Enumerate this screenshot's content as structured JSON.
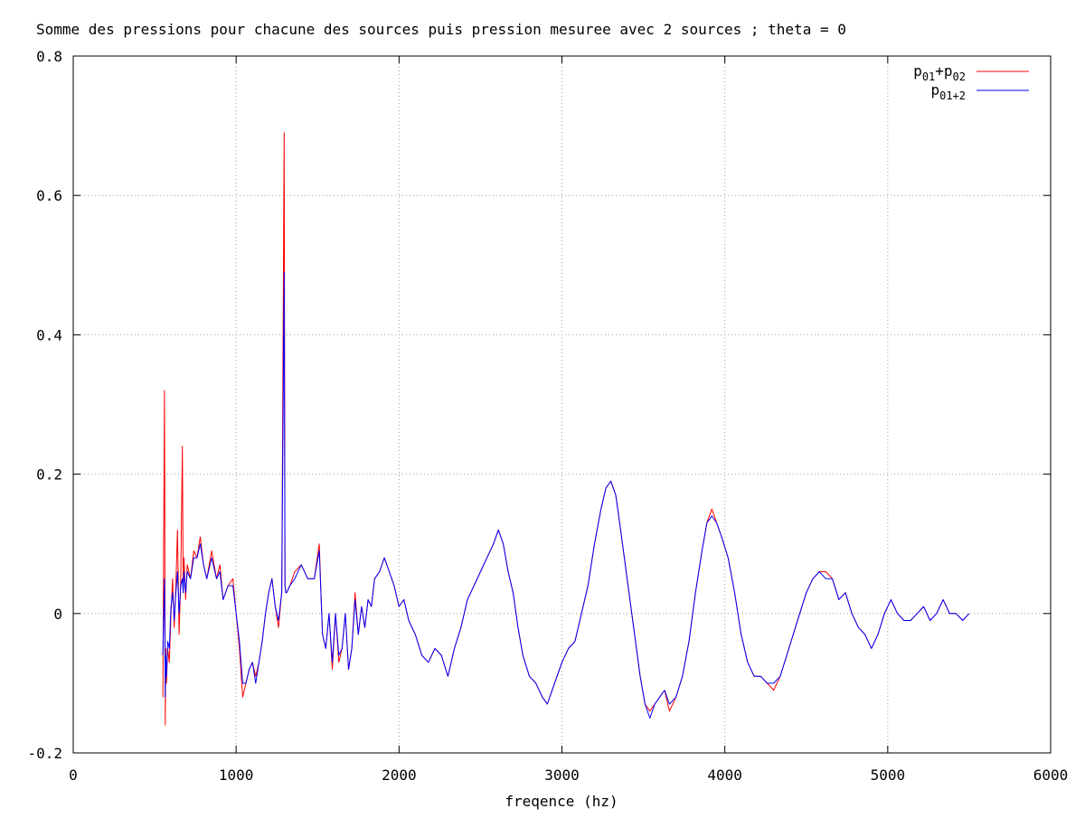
{
  "chart_data": {
    "type": "line",
    "title": "Somme des pressions pour chacune des sources puis pression mesuree avec 2 sources ; theta = 0",
    "xlabel": "freqence (hz)",
    "ylabel": "",
    "xlim": [
      0,
      6000
    ],
    "ylim": [
      -0.2,
      0.8
    ],
    "x_ticks": [
      0,
      1000,
      2000,
      3000,
      4000,
      5000,
      6000
    ],
    "x_tick_labels": [
      "0",
      "1000",
      "2000",
      "3000",
      "4000",
      "5000",
      "6000"
    ],
    "y_ticks": [
      -0.2,
      0,
      0.2,
      0.4,
      0.6,
      0.8
    ],
    "y_tick_labels": [
      "-0.2",
      "0",
      "0.2",
      "0.4",
      "0.6",
      "0.8"
    ],
    "grid": true,
    "legend_position": "top-right",
    "series": [
      {
        "name": "p01+p02",
        "legend_base": "p",
        "legend_sub1": "01",
        "legend_mid": "+p",
        "legend_sub2": "02",
        "color": "#ff0000",
        "x": [
          550,
          560,
          565,
          568,
          572,
          580,
          590,
          600,
          610,
          620,
          630,
          640,
          650,
          660,
          670,
          675,
          680,
          690,
          700,
          720,
          740,
          760,
          780,
          800,
          820,
          850,
          880,
          900,
          920,
          950,
          980,
          1000,
          1020,
          1040,
          1060,
          1080,
          1100,
          1120,
          1140,
          1160,
          1180,
          1200,
          1220,
          1240,
          1260,
          1280,
          1295,
          1300,
          1305,
          1310,
          1330,
          1360,
          1400,
          1440,
          1480,
          1510,
          1530,
          1550,
          1570,
          1590,
          1610,
          1630,
          1650,
          1670,
          1690,
          1710,
          1730,
          1750,
          1770,
          1790,
          1810,
          1830,
          1850,
          1880,
          1910,
          1940,
          1970,
          2000,
          2030,
          2060,
          2100,
          2140,
          2180,
          2220,
          2260,
          2300,
          2340,
          2380,
          2420,
          2460,
          2500,
          2540,
          2580,
          2610,
          2640,
          2670,
          2700,
          2730,
          2760,
          2800,
          2840,
          2880,
          2910,
          2940,
          2970,
          3000,
          3040,
          3080,
          3120,
          3160,
          3200,
          3240,
          3270,
          3300,
          3330,
          3360,
          3400,
          3440,
          3480,
          3510,
          3540,
          3570,
          3600,
          3630,
          3660,
          3700,
          3740,
          3780,
          3820,
          3860,
          3890,
          3920,
          3950,
          3980,
          4020,
          4060,
          4100,
          4140,
          4180,
          4220,
          4260,
          4300,
          4340,
          4380,
          4420,
          4460,
          4500,
          4540,
          4580,
          4620,
          4660,
          4700,
          4740,
          4780,
          4820,
          4860,
          4900,
          4940,
          4980,
          5020,
          5060,
          5100,
          5140,
          5180,
          5220,
          5260,
          5300,
          5340,
          5380,
          5420,
          5460,
          5500
        ],
        "y": [
          -0.12,
          0.32,
          -0.16,
          -0.05,
          -0.1,
          -0.05,
          -0.07,
          0.0,
          0.05,
          -0.02,
          0.04,
          0.12,
          -0.03,
          0.05,
          0.24,
          0.03,
          0.08,
          0.02,
          0.07,
          0.05,
          0.09,
          0.08,
          0.11,
          0.07,
          0.05,
          0.09,
          0.05,
          0.07,
          0.02,
          0.04,
          0.05,
          0.0,
          -0.05,
          -0.12,
          -0.1,
          -0.08,
          -0.07,
          -0.09,
          -0.07,
          -0.04,
          0.0,
          0.03,
          0.05,
          0.01,
          -0.02,
          0.03,
          0.69,
          0.04,
          0.03,
          0.03,
          0.04,
          0.06,
          0.07,
          0.05,
          0.05,
          0.1,
          -0.03,
          -0.05,
          0.0,
          -0.08,
          0.0,
          -0.07,
          -0.05,
          0.0,
          -0.08,
          -0.05,
          0.03,
          -0.03,
          0.01,
          -0.02,
          0.02,
          0.01,
          0.05,
          0.06,
          0.08,
          0.06,
          0.04,
          0.01,
          0.02,
          -0.01,
          -0.03,
          -0.06,
          -0.07,
          -0.05,
          -0.06,
          -0.09,
          -0.05,
          -0.02,
          0.02,
          0.04,
          0.06,
          0.08,
          0.1,
          0.12,
          0.1,
          0.06,
          0.03,
          -0.02,
          -0.06,
          -0.09,
          -0.1,
          -0.12,
          -0.13,
          -0.11,
          -0.09,
          -0.07,
          -0.05,
          -0.04,
          0.0,
          0.04,
          0.1,
          0.15,
          0.18,
          0.19,
          0.17,
          0.12,
          0.05,
          -0.02,
          -0.09,
          -0.13,
          -0.14,
          -0.13,
          -0.12,
          -0.11,
          -0.14,
          -0.12,
          -0.09,
          -0.04,
          0.03,
          0.09,
          0.13,
          0.15,
          0.13,
          0.11,
          0.08,
          0.03,
          -0.03,
          -0.07,
          -0.09,
          -0.09,
          -0.1,
          -0.11,
          -0.09,
          -0.06,
          -0.03,
          0.0,
          0.03,
          0.05,
          0.06,
          0.06,
          0.05,
          0.02,
          0.03,
          0.0,
          -0.02,
          -0.03,
          -0.05,
          -0.03,
          0.0,
          0.02,
          0.0,
          -0.01,
          -0.01,
          0.0,
          0.01,
          -0.01,
          0.0,
          0.02,
          0.0,
          0.0,
          -0.01,
          0.0
        ]
      },
      {
        "name": "p01+2",
        "legend_base": "p",
        "legend_sub1": "01+2",
        "legend_mid": "",
        "legend_sub2": "",
        "color": "#0000ff",
        "x": [
          550,
          560,
          565,
          568,
          572,
          580,
          590,
          600,
          610,
          620,
          630,
          640,
          650,
          660,
          670,
          675,
          680,
          690,
          700,
          720,
          740,
          760,
          780,
          800,
          820,
          850,
          880,
          900,
          920,
          950,
          980,
          1000,
          1020,
          1040,
          1060,
          1080,
          1100,
          1120,
          1140,
          1160,
          1180,
          1200,
          1220,
          1240,
          1260,
          1280,
          1295,
          1300,
          1305,
          1310,
          1330,
          1360,
          1400,
          1440,
          1480,
          1510,
          1530,
          1550,
          1570,
          1590,
          1610,
          1630,
          1650,
          1670,
          1690,
          1710,
          1730,
          1750,
          1770,
          1790,
          1810,
          1830,
          1850,
          1880,
          1910,
          1940,
          1970,
          2000,
          2030,
          2060,
          2100,
          2140,
          2180,
          2220,
          2260,
          2300,
          2340,
          2380,
          2420,
          2460,
          2500,
          2540,
          2580,
          2610,
          2640,
          2670,
          2700,
          2730,
          2760,
          2800,
          2840,
          2880,
          2910,
          2940,
          2970,
          3000,
          3040,
          3080,
          3120,
          3160,
          3200,
          3240,
          3270,
          3300,
          3330,
          3360,
          3400,
          3440,
          3480,
          3510,
          3540,
          3570,
          3600,
          3630,
          3660,
          3700,
          3740,
          3780,
          3820,
          3860,
          3890,
          3920,
          3950,
          3980,
          4020,
          4060,
          4100,
          4140,
          4180,
          4220,
          4260,
          4300,
          4340,
          4380,
          4420,
          4460,
          4500,
          4540,
          4580,
          4620,
          4660,
          4700,
          4740,
          4780,
          4820,
          4860,
          4900,
          4940,
          4980,
          5020,
          5060,
          5100,
          5140,
          5180,
          5220,
          5260,
          5300,
          5340,
          5380,
          5420,
          5460,
          5500
        ],
        "y": [
          -0.06,
          0.05,
          -0.12,
          -0.06,
          -0.09,
          -0.04,
          -0.05,
          0.01,
          0.03,
          -0.01,
          0.03,
          0.06,
          0.0,
          0.04,
          0.05,
          0.03,
          0.06,
          0.03,
          0.06,
          0.05,
          0.08,
          0.08,
          0.1,
          0.07,
          0.05,
          0.08,
          0.05,
          0.06,
          0.02,
          0.04,
          0.04,
          0.0,
          -0.04,
          -0.1,
          -0.1,
          -0.08,
          -0.07,
          -0.1,
          -0.07,
          -0.04,
          0.0,
          0.03,
          0.05,
          0.01,
          -0.01,
          0.03,
          0.49,
          0.04,
          0.03,
          0.03,
          0.04,
          0.05,
          0.07,
          0.05,
          0.05,
          0.09,
          -0.03,
          -0.05,
          0.0,
          -0.07,
          0.0,
          -0.06,
          -0.05,
          0.0,
          -0.08,
          -0.05,
          0.02,
          -0.03,
          0.01,
          -0.02,
          0.02,
          0.01,
          0.05,
          0.06,
          0.08,
          0.06,
          0.04,
          0.01,
          0.02,
          -0.01,
          -0.03,
          -0.06,
          -0.07,
          -0.05,
          -0.06,
          -0.09,
          -0.05,
          -0.02,
          0.02,
          0.04,
          0.06,
          0.08,
          0.1,
          0.12,
          0.1,
          0.06,
          0.03,
          -0.02,
          -0.06,
          -0.09,
          -0.1,
          -0.12,
          -0.13,
          -0.11,
          -0.09,
          -0.07,
          -0.05,
          -0.04,
          0.0,
          0.04,
          0.1,
          0.15,
          0.18,
          0.19,
          0.17,
          0.12,
          0.05,
          -0.02,
          -0.09,
          -0.13,
          -0.15,
          -0.13,
          -0.12,
          -0.11,
          -0.13,
          -0.12,
          -0.09,
          -0.04,
          0.03,
          0.09,
          0.13,
          0.14,
          0.13,
          0.11,
          0.08,
          0.03,
          -0.03,
          -0.07,
          -0.09,
          -0.09,
          -0.1,
          -0.1,
          -0.09,
          -0.06,
          -0.03,
          0.0,
          0.03,
          0.05,
          0.06,
          0.05,
          0.05,
          0.02,
          0.03,
          0.0,
          -0.02,
          -0.03,
          -0.05,
          -0.03,
          0.0,
          0.02,
          0.0,
          -0.01,
          -0.01,
          0.0,
          0.01,
          -0.01,
          0.0,
          0.02,
          0.0,
          0.0,
          -0.01,
          0.0
        ]
      }
    ]
  }
}
